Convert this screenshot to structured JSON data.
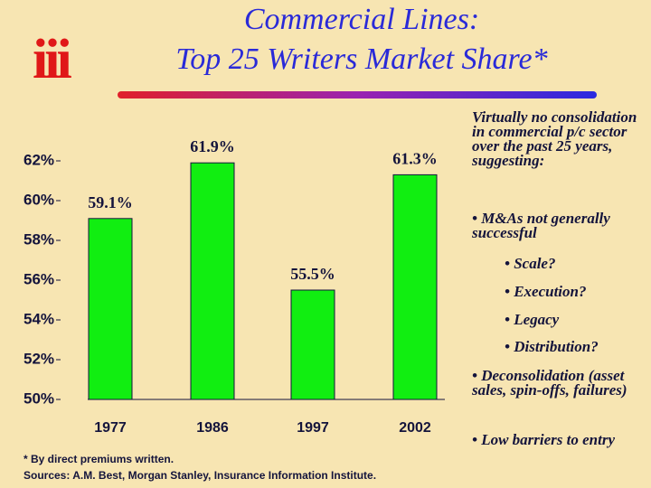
{
  "logo": "iii",
  "title_lines": [
    "Commercial Lines:",
    "Top 25 Writers Market Share*"
  ],
  "footnotes": [
    "* By direct premiums written.",
    "Sources: A.M. Best, Morgan Stanley, Insurance Information Institute."
  ],
  "notes": {
    "intro": "Virtually no consolidation in commercial p/c sector over the past 25 years, suggesting:",
    "bullets": [
      {
        "text": "• M&As not generally successful",
        "items": [
          "• Scale?",
          "• Execution?",
          "• Legacy",
          "• Distribution?"
        ]
      },
      {
        "text": "• Deconsolidation (asset sales, spin-offs, failures)"
      },
      {
        "text": "• Low barriers to entry"
      }
    ]
  },
  "chart_data": {
    "type": "bar",
    "categories": [
      "1977",
      "1986",
      "1997",
      "2002"
    ],
    "values": [
      59.1,
      61.9,
      55.5,
      61.3
    ],
    "value_labels": [
      "59.1%",
      "61.9%",
      "55.5%",
      "61.3%"
    ],
    "color": "#11ee11",
    "ylim": [
      50,
      62
    ],
    "yticks": [
      {
        "value": 50,
        "label": "50%"
      },
      {
        "value": 52,
        "label": "52%"
      },
      {
        "value": 54,
        "label": "54%"
      },
      {
        "value": 56,
        "label": "56%"
      },
      {
        "value": 58,
        "label": "58%"
      },
      {
        "value": 60,
        "label": "60%"
      },
      {
        "value": 62,
        "label": "62%"
      }
    ]
  }
}
